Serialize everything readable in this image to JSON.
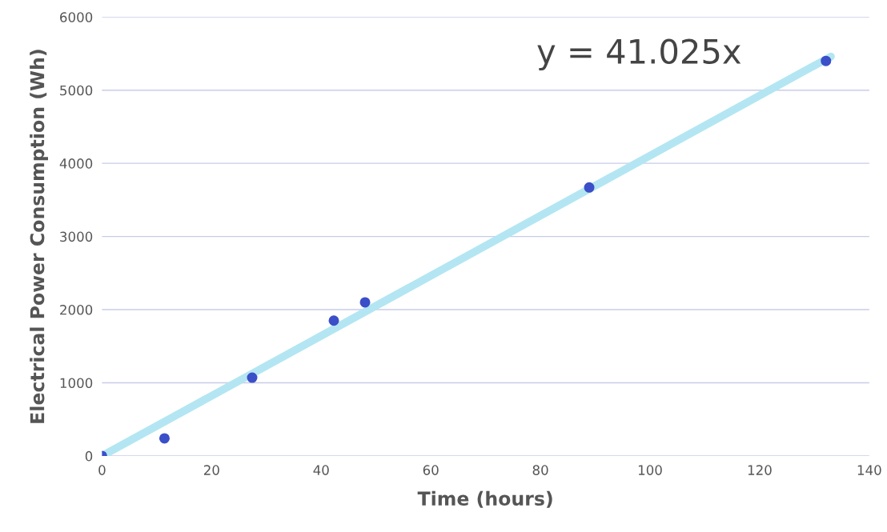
{
  "chart_data": {
    "type": "scatter",
    "xlabel": "Time (hours)",
    "ylabel": "Electrical Power Consumption (Wh)",
    "annotations": [
      "y = 41.025x"
    ],
    "series": [
      {
        "color": "#3b4fc8",
        "x": [
          0,
          11.4,
          27.4,
          42.3,
          48,
          88.9,
          132.1
        ],
        "values": [
          0,
          240,
          1070,
          1850,
          2100,
          3670,
          5400
        ],
        "marker": "circle"
      },
      {
        "type": "line",
        "color": "#b3e6f2",
        "x": [
          0,
          133
        ],
        "values": [
          0,
          5460
        ],
        "marker": "none"
      }
    ],
    "xlim": [
      0,
      140
    ],
    "xticks": [
      0,
      20,
      40,
      60,
      80,
      100,
      120,
      140
    ],
    "ylim": [
      0,
      6000
    ],
    "yticks": [
      0,
      1000,
      2000,
      3000,
      4000,
      5000,
      6000
    ],
    "grid": "y",
    "legend": false
  }
}
